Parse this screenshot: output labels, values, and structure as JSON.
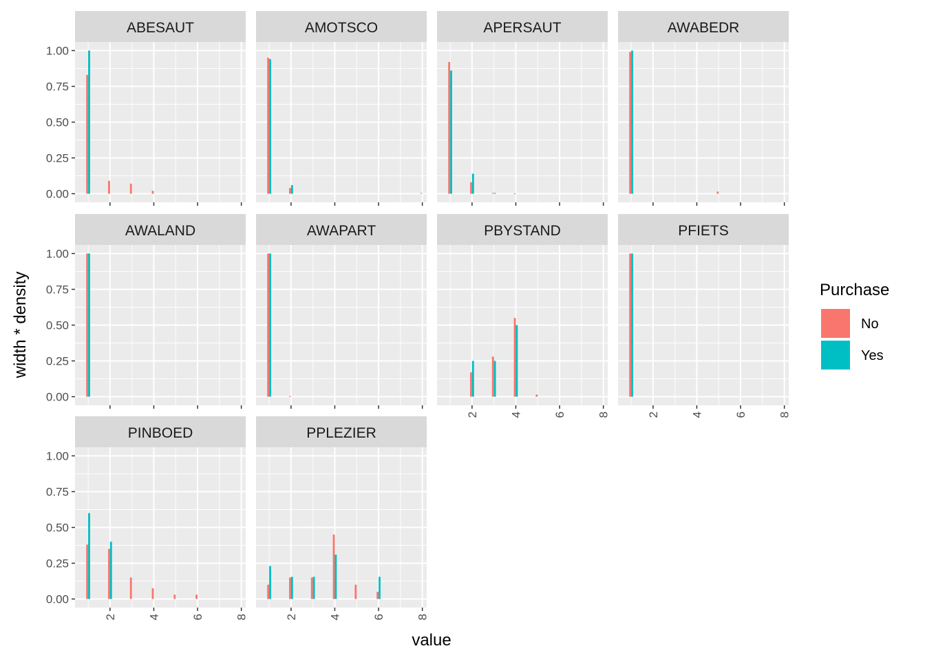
{
  "chart_data": {
    "type": "bar",
    "facet_by": "variable",
    "xlabel": "value",
    "ylabel": "width * density",
    "x_ticks": [
      2,
      4,
      6,
      8
    ],
    "y_ticks": [
      "0.00",
      "0.25",
      "0.50",
      "0.75",
      "1.00"
    ],
    "xlim": [
      0.4,
      8.2
    ],
    "ylim": [
      -0.06,
      1.06
    ],
    "grid": true,
    "legend": {
      "title": "Purchase",
      "position": "right",
      "entries": [
        {
          "name": "No",
          "color": "#F8766D"
        },
        {
          "name": "Yes",
          "color": "#00BFC4"
        }
      ]
    },
    "panels": [
      {
        "title": "ABESAUT",
        "bars": [
          {
            "x": 1,
            "no": 0.83,
            "yes": 1.0
          },
          {
            "x": 2,
            "no": 0.09,
            "yes": 0.0
          },
          {
            "x": 3,
            "no": 0.07,
            "yes": 0.0
          },
          {
            "x": 4,
            "no": 0.02,
            "yes": 0.0
          }
        ]
      },
      {
        "title": "AMOTSCO",
        "bars": [
          {
            "x": 1,
            "no": 0.95,
            "yes": 0.94
          },
          {
            "x": 2,
            "no": 0.04,
            "yes": 0.06
          },
          {
            "x": 8,
            "no": 0.005,
            "yes": 0.0
          }
        ]
      },
      {
        "title": "APERSAUT",
        "bars": [
          {
            "x": 1,
            "no": 0.92,
            "yes": 0.86
          },
          {
            "x": 2,
            "no": 0.08,
            "yes": 0.14
          },
          {
            "x": 3,
            "no": 0.005,
            "yes": 0.005
          },
          {
            "x": 4,
            "no": 0.002,
            "yes": 0.0
          }
        ]
      },
      {
        "title": "AWABEDR",
        "bars": [
          {
            "x": 1,
            "no": 0.99,
            "yes": 1.0
          },
          {
            "x": 5,
            "no": 0.015,
            "yes": 0.0
          }
        ]
      },
      {
        "title": "AWALAND",
        "bars": [
          {
            "x": 1,
            "no": 1.0,
            "yes": 1.0
          }
        ]
      },
      {
        "title": "AWAPART",
        "bars": [
          {
            "x": 1,
            "no": 1.0,
            "yes": 1.0
          },
          {
            "x": 2,
            "no": 0.004,
            "yes": 0.0
          }
        ]
      },
      {
        "title": "PBYSTAND",
        "bars": [
          {
            "x": 2,
            "no": 0.17,
            "yes": 0.25
          },
          {
            "x": 3,
            "no": 0.28,
            "yes": 0.25
          },
          {
            "x": 4,
            "no": 0.55,
            "yes": 0.5
          },
          {
            "x": 5,
            "no": 0.015,
            "yes": 0.0
          }
        ]
      },
      {
        "title": "PFIETS",
        "bars": [
          {
            "x": 1,
            "no": 1.0,
            "yes": 1.0
          }
        ]
      },
      {
        "title": "PINBOED",
        "bars": [
          {
            "x": 1,
            "no": 0.38,
            "yes": 0.6
          },
          {
            "x": 2,
            "no": 0.35,
            "yes": 0.4
          },
          {
            "x": 3,
            "no": 0.15,
            "yes": 0.0
          },
          {
            "x": 4,
            "no": 0.075,
            "yes": 0.0
          },
          {
            "x": 5,
            "no": 0.03,
            "yes": 0.0
          },
          {
            "x": 6,
            "no": 0.03,
            "yes": 0.0
          }
        ]
      },
      {
        "title": "PPLEZIER",
        "bars": [
          {
            "x": 1,
            "no": 0.1,
            "yes": 0.23
          },
          {
            "x": 2,
            "no": 0.15,
            "yes": 0.155
          },
          {
            "x": 3,
            "no": 0.15,
            "yes": 0.155
          },
          {
            "x": 4,
            "no": 0.45,
            "yes": 0.31
          },
          {
            "x": 5,
            "no": 0.1,
            "yes": 0.0
          },
          {
            "x": 6,
            "no": 0.05,
            "yes": 0.155
          }
        ]
      }
    ]
  }
}
